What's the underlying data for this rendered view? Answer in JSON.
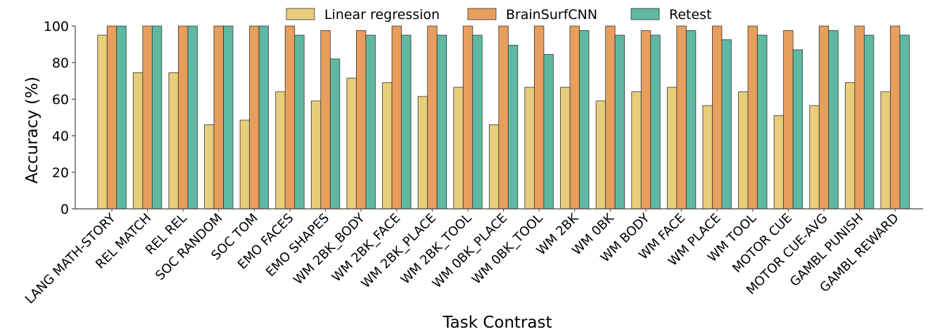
{
  "chart_data": {
    "type": "bar",
    "title": "",
    "xlabel": "Task Contrast",
    "ylabel": "Accuracy (%)",
    "ylim": [
      0,
      100
    ],
    "yticks": [
      0,
      20,
      40,
      60,
      80,
      100
    ],
    "grid": false,
    "legend_position": "top-center",
    "categories": [
      "LANG MATH-STORY",
      "REL MATCH",
      "REL REL",
      "SOC RANDOM",
      "SOC TOM",
      "EMO FACES",
      "EMO SHAPES",
      "WM 2BK_BODY",
      "WM 2BK_FACE",
      "WM 2BK_PLACE",
      "WM 2BK_TOOL",
      "WM 0BK_PLACE",
      "WM 0BK_TOOL",
      "WM 2BK",
      "WM 0BK",
      "WM BODY",
      "WM FACE",
      "WM PLACE",
      "WM TOOL",
      "MOTOR CUE",
      "MOTOR CUE-AVG",
      "GAMBL PUNISH",
      "GAMBL REWARD"
    ],
    "series": [
      {
        "name": "Linear regression",
        "color": "#e8cd7a",
        "values": [
          95,
          74.5,
          74.5,
          46,
          48.5,
          64,
          59,
          71.5,
          69,
          61.5,
          66.5,
          46,
          66.5,
          66.5,
          59,
          64,
          66.5,
          56.5,
          64,
          51,
          56.5,
          69,
          64
        ]
      },
      {
        "name": "BrainSurfCNN",
        "color": "#e89e5c",
        "values": [
          100,
          100,
          100,
          100,
          100,
          100,
          97.5,
          97.5,
          100,
          100,
          100,
          100,
          100,
          100,
          100,
          97.5,
          100,
          100,
          100,
          97.5,
          100,
          100,
          100
        ]
      },
      {
        "name": "Retest",
        "color": "#5fb9a2",
        "values": [
          100,
          100,
          100,
          100,
          100,
          95,
          82,
          95,
          95,
          95,
          95,
          89.5,
          84.5,
          97.5,
          95,
          95,
          97.5,
          92.5,
          95,
          87,
          97.5,
          95,
          95
        ]
      }
    ]
  }
}
